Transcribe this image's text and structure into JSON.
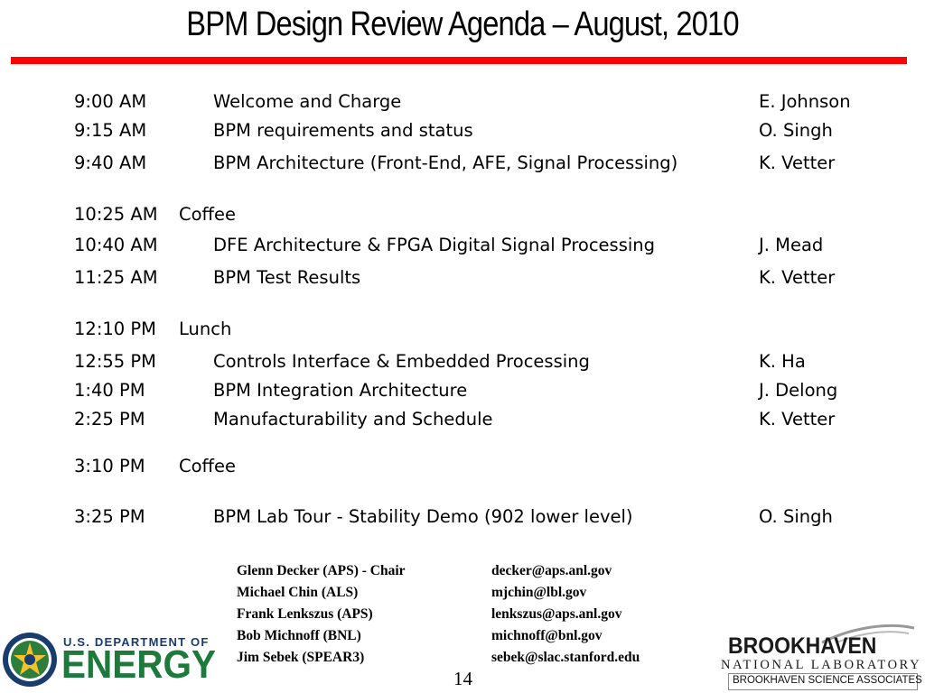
{
  "title": "BPM Design Review Agenda – August, 2010",
  "agenda": [
    {
      "time": "9:00 AM",
      "topic": "Welcome and Charge",
      "speaker": "E. Johnson"
    },
    {
      "time": "9:15 AM",
      "topic": "BPM requirements  and status",
      "speaker": "O. Singh"
    },
    {
      "time": "9:40 AM",
      "topic": "BPM Architecture (Front-End, AFE, Signal Processing)",
      "speaker": "K. Vetter"
    },
    {
      "time": "10:25 AM",
      "topic": "Coffee",
      "speaker": ""
    },
    {
      "time": "10:40 AM",
      "topic": "DFE Architecture & FPGA Digital Signal Processing",
      "speaker": "J. Mead"
    },
    {
      "time": "11:25 AM",
      "topic": "BPM Test Results",
      "speaker": "K. Vetter"
    },
    {
      "time": "12:10 PM",
      "topic": "Lunch",
      "speaker": ""
    },
    {
      "time": "12:55 PM",
      "topic": "Controls Interface & Embedded Processing",
      "speaker": "K. Ha"
    },
    {
      "time": "1:40 PM",
      "topic": "BPM Integration Architecture",
      "speaker": "J. Delong"
    },
    {
      "time": "2:25 PM",
      "topic": "Manufacturability and Schedule",
      "speaker": "K. Vetter"
    },
    {
      "time": "3:10 PM",
      "topic": "Coffee",
      "speaker": ""
    },
    {
      "time": "3:25 PM",
      "topic": "BPM Lab Tour - Stability Demo (902 lower level)",
      "speaker": "O. Singh"
    }
  ],
  "committee": [
    {
      "name": "Glenn Decker (APS) - Chair",
      "email": "decker@aps.anl.gov"
    },
    {
      "name": "Michael Chin (ALS)",
      "email": "mjchin@lbl.gov"
    },
    {
      "name": "Frank Lenkszus (APS)",
      "email": "lenkszus@aps.anl.gov"
    },
    {
      "name": "Bob Michnoff (BNL)",
      "email": "michnoff@bnl.gov"
    },
    {
      "name": "Jim Sebek (SPEAR3)",
      "email": "sebek@slac.stanford.edu"
    }
  ],
  "page_number": "14",
  "logos": {
    "doe_top": "U.S. DEPARTMENT OF",
    "doe_main": "ENERGY",
    "bnl_name": "BROOKHAVEN",
    "bnl_sub": "NATIONAL LABORATORY",
    "bnl_assoc": "BROOKHAVEN SCIENCE ASSOCIATES"
  },
  "colors": {
    "rule": "#ff0000",
    "doe_blue": "#1a3b6e",
    "doe_green": "#1d7a3a"
  }
}
